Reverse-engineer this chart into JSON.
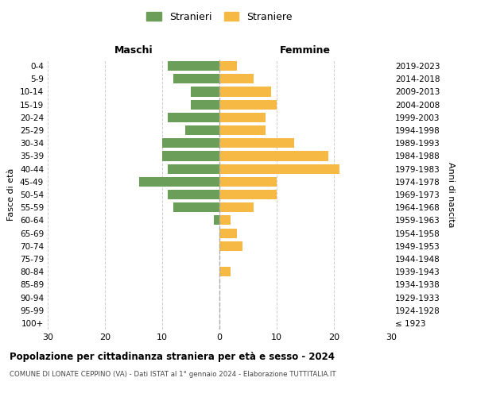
{
  "age_groups": [
    "0-4",
    "5-9",
    "10-14",
    "15-19",
    "20-24",
    "25-29",
    "30-34",
    "35-39",
    "40-44",
    "45-49",
    "50-54",
    "55-59",
    "60-64",
    "65-69",
    "70-74",
    "75-79",
    "80-84",
    "85-89",
    "90-94",
    "95-99",
    "100+"
  ],
  "birth_years": [
    "2019-2023",
    "2014-2018",
    "2009-2013",
    "2004-2008",
    "1999-2003",
    "1994-1998",
    "1989-1993",
    "1984-1988",
    "1979-1983",
    "1974-1978",
    "1969-1973",
    "1964-1968",
    "1959-1963",
    "1954-1958",
    "1949-1953",
    "1944-1948",
    "1939-1943",
    "1934-1938",
    "1929-1933",
    "1924-1928",
    "≤ 1923"
  ],
  "maschi": [
    9,
    8,
    5,
    5,
    9,
    6,
    10,
    10,
    9,
    14,
    9,
    8,
    1,
    0,
    0,
    0,
    0,
    0,
    0,
    0,
    0
  ],
  "femmine": [
    3,
    6,
    9,
    10,
    8,
    8,
    13,
    19,
    21,
    10,
    10,
    6,
    2,
    3,
    4,
    0,
    2,
    0,
    0,
    0,
    0
  ],
  "maschi_color": "#6b9e58",
  "femmine_color": "#f5b944",
  "title": "Popolazione per cittadinanza straniera per età e sesso - 2024",
  "subtitle": "COMUNE DI LONATE CEPPINO (VA) - Dati ISTAT al 1° gennaio 2024 - Elaborazione TUTTITALIA.IT",
  "xlabel_left": "Maschi",
  "xlabel_right": "Femmine",
  "ylabel_left": "Fasce di età",
  "ylabel_right": "Anni di nascita",
  "xlim": 30,
  "legend_stranieri": "Stranieri",
  "legend_straniere": "Straniere",
  "background_color": "#ffffff",
  "grid_color": "#cccccc"
}
